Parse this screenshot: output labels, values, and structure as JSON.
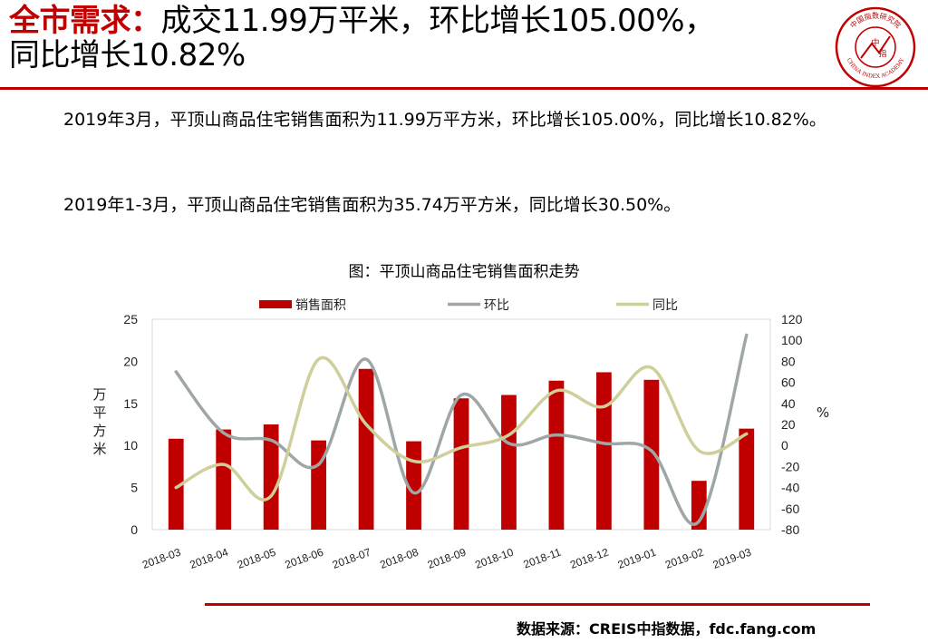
{
  "header": {
    "title_prefix": "全市需求",
    "title_sep": "：",
    "title_line1_rest": "成交11.99万平米，环比增长105.00%，",
    "title_line2": "同比增长10.82%"
  },
  "logo": {
    "top_text": "中国指数研究院",
    "center_top": "中",
    "center_bottom": "指",
    "bottom_text": "CHINA INDEX ACADEMY",
    "color": "#c00000"
  },
  "body": {
    "para1": "2019年3月，平顶山商品住宅销售面积为11.99万平方米，环比增长105.00%，同比增长10.82%。",
    "para2": "2019年1-3月，平顶山商品住宅销售面积为35.74万平方米，同比增长30.50%。"
  },
  "chart_title": "图：平顶山商品住宅销售面积走势",
  "chart_data": {
    "type": "bar",
    "categories": [
      "2018-03",
      "2018-04",
      "2018-05",
      "2018-06",
      "2018-07",
      "2018-08",
      "2018-09",
      "2018-10",
      "2018-11",
      "2018-12",
      "2019-01",
      "2019-02",
      "2019-03"
    ],
    "series": [
      {
        "name": "销售面积",
        "type": "bar",
        "axis": "left",
        "color": "#c00000",
        "values": [
          10.8,
          11.9,
          12.5,
          10.6,
          19.1,
          10.5,
          15.6,
          16.0,
          17.7,
          18.7,
          17.8,
          5.8,
          12.0
        ]
      },
      {
        "name": "环比",
        "type": "line",
        "axis": "right",
        "color": "#9fa6a6",
        "values": [
          70,
          12,
          5,
          -18,
          82,
          -45,
          48,
          2,
          10,
          2,
          -5,
          -72,
          105
        ]
      },
      {
        "name": "同比",
        "type": "line",
        "axis": "right",
        "color": "#cfcf9c",
        "values": [
          -40,
          -18,
          -48,
          82,
          20,
          -15,
          -2,
          10,
          52,
          37,
          74,
          -5,
          11
        ]
      }
    ],
    "ylabel": "万平方米",
    "y2label": "%",
    "ylim": [
      0,
      25
    ],
    "y2lim": [
      -80,
      120
    ],
    "yticks": [
      0,
      5,
      10,
      15,
      20,
      25
    ],
    "y2ticks": [
      -80,
      -60,
      -40,
      -20,
      0,
      20,
      40,
      60,
      80,
      100,
      120
    ],
    "legend": "top",
    "grid": false
  },
  "source": "数据来源：CREIS中指数据，fdc.fang.com"
}
